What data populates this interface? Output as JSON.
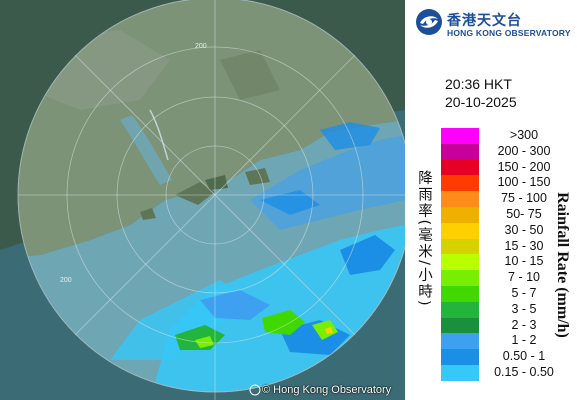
{
  "logo": {
    "name_zh": "香港天文台",
    "name_en": "HONG KONG OBSERVATORY"
  },
  "timestamp": {
    "time": "20:36 HKT",
    "date": "20-10-2025"
  },
  "legend": {
    "unit_zh": "降雨率(毫米/小時)",
    "unit_en": "Rainfall Rate (mm/h)",
    "items": [
      {
        "label": ">300",
        "color": "#ff00ff"
      },
      {
        "label": "200 - 300",
        "color": "#c8009b"
      },
      {
        "label": "150 - 200",
        "color": "#e60026"
      },
      {
        "label": "100 - 150",
        "color": "#ff3b00"
      },
      {
        "label": "75 - 100",
        "color": "#ff8c1a"
      },
      {
        "label": "50- 75",
        "color": "#f0b000"
      },
      {
        "label": "30 - 50",
        "color": "#ffd000"
      },
      {
        "label": "15 - 30",
        "color": "#d6d200"
      },
      {
        "label": "10 - 15",
        "color": "#b8ff00"
      },
      {
        "label": "7 - 10",
        "color": "#78ee00"
      },
      {
        "label": "5 - 7",
        "color": "#40d800"
      },
      {
        "label": "3 - 5",
        "color": "#23b43c"
      },
      {
        "label": "2 - 3",
        "color": "#1a8f3c"
      },
      {
        "label": "1 - 2",
        "color": "#3ea0f0"
      },
      {
        "label": "0.50 - 1",
        "color": "#1b8fe6"
      },
      {
        "label": "0.15 - 0.50",
        "color": "#36c8f8"
      }
    ]
  },
  "map": {
    "range_labels": [
      "200",
      "200"
    ],
    "copyright": "© Hong Kong Observatory"
  }
}
